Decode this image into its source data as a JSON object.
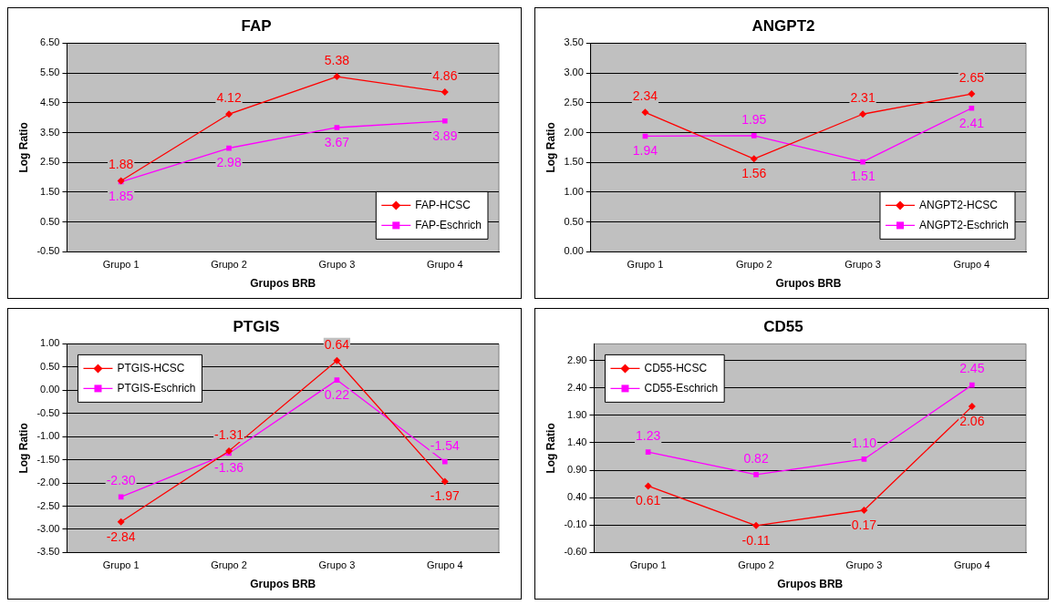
{
  "chart_data": [
    {
      "type": "line",
      "title": "FAP",
      "xlabel": "Grupos BRB",
      "ylabel": "Log Ratio",
      "categories": [
        "Grupo 1",
        "Grupo 2",
        "Grupo 3",
        "Grupo 4"
      ],
      "ylim": [
        -0.5,
        6.5
      ],
      "yticks": [
        {
          "value": -0.5,
          "label": "-0.50"
        },
        {
          "value": 0.5,
          "label": "0.50"
        },
        {
          "value": 1.5,
          "label": "1.50"
        },
        {
          "value": 2.5,
          "label": "2.50"
        },
        {
          "value": 3.5,
          "label": "3.50"
        },
        {
          "value": 4.5,
          "label": "4.50"
        },
        {
          "value": 5.5,
          "label": "5.50"
        },
        {
          "value": 6.5,
          "label": "6.50"
        }
      ],
      "grid": "y",
      "legend": "bottom right",
      "series": [
        {
          "name": "FAP-HCSC",
          "color": "#ff0000",
          "marker": "diamond",
          "values": [
            1.88,
            4.12,
            5.38,
            4.86
          ],
          "value_labels": [
            "1.88",
            "4.12",
            "5.38",
            "4.86"
          ]
        },
        {
          "name": "FAP-Eschrich",
          "color": "#ff00ff",
          "marker": "square",
          "values": [
            1.85,
            2.98,
            3.67,
            3.89
          ],
          "value_labels": [
            "1.85",
            "2.98",
            "3.67",
            "3.89"
          ]
        }
      ]
    },
    {
      "type": "line",
      "title": "ANGPT2",
      "xlabel": "Grupos BRB",
      "ylabel": "Log Ratio",
      "categories": [
        "Grupo 1",
        "Grupo 2",
        "Grupo 3",
        "Grupo 4"
      ],
      "ylim": [
        0,
        3.5
      ],
      "yticks": [
        {
          "value": 0,
          "label": "0.00"
        },
        {
          "value": 0.5,
          "label": "0.50"
        },
        {
          "value": 1,
          "label": "1.00"
        },
        {
          "value": 1.5,
          "label": "1.50"
        },
        {
          "value": 2,
          "label": "2.00"
        },
        {
          "value": 2.5,
          "label": "2.50"
        },
        {
          "value": 3,
          "label": "3.00"
        },
        {
          "value": 3.5,
          "label": "3.50"
        }
      ],
      "grid": "y",
      "legend": "bottom right",
      "series": [
        {
          "name": "ANGPT2-HCSC",
          "color": "#ff0000",
          "marker": "diamond",
          "values": [
            2.34,
            1.56,
            2.31,
            2.65
          ],
          "value_labels": [
            "2.34",
            "1.56",
            "2.31",
            "2.65"
          ]
        },
        {
          "name": "ANGPT2-Eschrich",
          "color": "#ff00ff",
          "marker": "square",
          "values": [
            1.94,
            1.95,
            1.51,
            2.41
          ],
          "value_labels": [
            "1.94",
            "1.95",
            "1.51",
            "2.41"
          ]
        }
      ]
    },
    {
      "type": "line",
      "title": "PTGIS",
      "xlabel": "Grupos BRB",
      "ylabel": "Log Ratio",
      "categories": [
        "Grupo 1",
        "Grupo 2",
        "Grupo 3",
        "Grupo 4"
      ],
      "ylim": [
        -3.5,
        1
      ],
      "yticks": [
        {
          "value": -3.5,
          "label": "-3.50"
        },
        {
          "value": -3,
          "label": "-3.00"
        },
        {
          "value": -2.5,
          "label": "-2.50"
        },
        {
          "value": -2,
          "label": "-2.00"
        },
        {
          "value": -1.5,
          "label": "-1.50"
        },
        {
          "value": -1,
          "label": "-1.00"
        },
        {
          "value": -0.5,
          "label": "-0.50"
        },
        {
          "value": 0,
          "label": "0.00"
        },
        {
          "value": 0.5,
          "label": "0.50"
        },
        {
          "value": 1,
          "label": "1.00"
        }
      ],
      "grid": "y",
      "legend": "top left",
      "series": [
        {
          "name": "PTGIS-HCSC",
          "color": "#ff0000",
          "marker": "diamond",
          "values": [
            -2.84,
            -1.31,
            0.64,
            -1.97
          ],
          "value_labels": [
            "-2.84",
            "-1.31",
            "0.64",
            "-1.97"
          ]
        },
        {
          "name": "PTGIS-Eschrich",
          "color": "#ff00ff",
          "marker": "square",
          "values": [
            -2.3,
            -1.36,
            0.22,
            -1.54
          ],
          "value_labels": [
            "-2.30",
            "-1.36",
            "0.22",
            "-1.54"
          ]
        }
      ]
    },
    {
      "type": "line",
      "title": "CD55",
      "xlabel": "Grupos BRB",
      "ylabel": "Log Ratio",
      "categories": [
        "Grupo 1",
        "Grupo 2",
        "Grupo 3",
        "Grupo 4"
      ],
      "ylim": [
        -0.6,
        3.2
      ],
      "yticks": [
        {
          "value": -0.6,
          "label": "-0.60"
        },
        {
          "value": -0.1,
          "label": "-0.10"
        },
        {
          "value": 0.4,
          "label": "0.40"
        },
        {
          "value": 0.9,
          "label": "0.90"
        },
        {
          "value": 1.4,
          "label": "1.40"
        },
        {
          "value": 1.9,
          "label": "1.90"
        },
        {
          "value": 2.4,
          "label": "2.40"
        },
        {
          "value": 2.9,
          "label": "2.90"
        }
      ],
      "grid": "y",
      "legend": "top left",
      "series": [
        {
          "name": "CD55-HCSC",
          "color": "#ff0000",
          "marker": "diamond",
          "values": [
            0.61,
            -0.11,
            0.17,
            2.06
          ],
          "value_labels": [
            "0.61",
            "-0.11",
            "0.17",
            "2.06"
          ]
        },
        {
          "name": "CD55-Eschrich",
          "color": "#ff00ff",
          "marker": "square",
          "values": [
            1.23,
            0.82,
            1.1,
            2.45
          ],
          "value_labels": [
            "1.23",
            "0.82",
            "1.10",
            "2.45"
          ]
        }
      ]
    }
  ]
}
